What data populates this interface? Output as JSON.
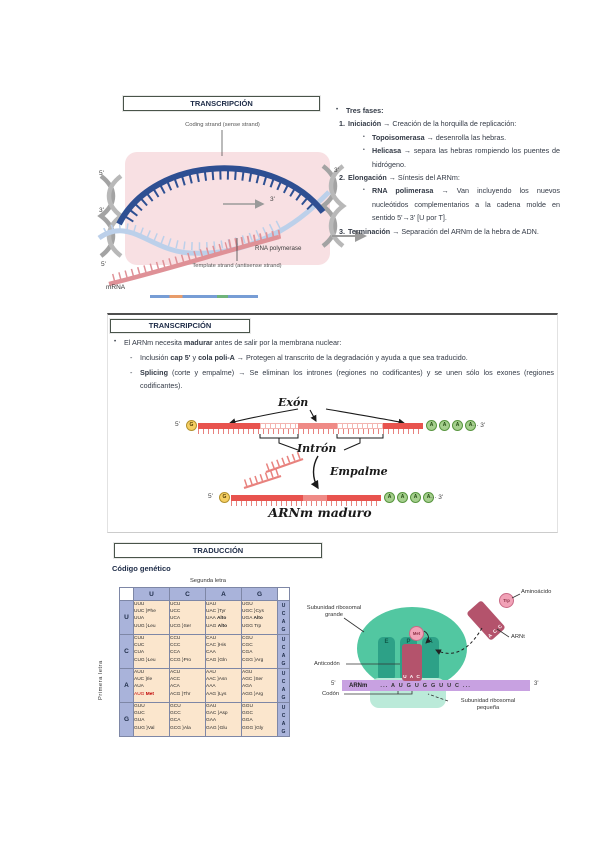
{
  "section1": {
    "title": "TRANSCRIPCIÓN",
    "diagram": {
      "coding_label": "Coding strand (sense strand)",
      "template_label": "Template strand (antisense strand)",
      "rna_polymerase": "RNA polymerase",
      "mrna": "mRNA",
      "p5": "5'",
      "p3": "3'"
    },
    "list": {
      "bullet": "•",
      "header": [
        {
          "t": "Tres fases:",
          "s": "b"
        }
      ],
      "items": [
        {
          "num": "1.",
          "head": [
            {
              "t": "Iniciación → ",
              "s": "b"
            },
            {
              "t": "Creación de la horquilla de replicación:"
            }
          ],
          "subs": [
            [
              {
                "t": "Topoisomerasa → ",
                "s": "b"
              },
              {
                "t": "desenrolla las hebras."
              }
            ],
            [
              {
                "t": "Helicasa → ",
                "s": "b"
              },
              {
                "t": "separa las hebras rompiendo los puentes de hidrógeno."
              }
            ]
          ]
        },
        {
          "num": "2.",
          "head": [
            {
              "t": "Elongación → ",
              "s": "b"
            },
            {
              "t": "Síntesis del ARNm:"
            }
          ],
          "subs": [
            [
              {
                "t": "RNA polimerasa → ",
                "s": "b"
              },
              {
                "t": "Van incluyendo los nuevos nucleótidos complementarios a la cadena molde en sentido 5'→3' [U por T]."
              }
            ]
          ]
        },
        {
          "num": "3.",
          "head": [
            {
              "t": "Terminación → ",
              "s": "b"
            },
            {
              "t": "Separación del ARNm de la hebra de ADN."
            }
          ],
          "subs": []
        }
      ]
    }
  },
  "section2": {
    "title": "TRANSCRIPCIÓN",
    "bullet": "•",
    "intro": [
      {
        "t": "El ARNm necesita "
      },
      {
        "t": "madurar",
        "s": "b"
      },
      {
        "t": " antes de salir por la membrana nuclear:"
      }
    ],
    "points": [
      {
        "marker": "-",
        "segs": [
          {
            "t": "Inclusión "
          },
          {
            "t": "cap 5'",
            "s": "b"
          },
          {
            "t": " y "
          },
          {
            "t": "cola poli-A",
            "s": "b"
          },
          {
            "t": " → Protegen al transcrito de la degradación y ayuda a que sea traducido."
          }
        ]
      },
      {
        "marker": "-",
        "segs": [
          {
            "t": "Splicing",
            "s": "b"
          },
          {
            "t": " (corte y empalme) → Se eliminan los intrones (regiones no codificantes) y se unen sólo los exones (regiones codificantes)."
          }
        ]
      }
    ],
    "diagram": {
      "exon": "Exón",
      "intron": "Intrón",
      "splice": "Empalme",
      "mature": "ARNm maduro",
      "p5": "5'",
      "p3": "3'",
      "dots3": "··· 3'",
      "cap": "G",
      "polyA": [
        "A",
        "A",
        "A",
        "A"
      ]
    }
  },
  "section3": {
    "title": "TRADUCCIÓN",
    "heading": "Código genético",
    "table": {
      "second_letter": "Segunda letra",
      "first_letter": "Primera letra",
      "third_letter": "Tercera letra",
      "cols": [
        "U",
        "C",
        "A",
        "G"
      ],
      "third": "U\nC\nA\nG",
      "rows": [
        {
          "letter": "U",
          "cells": [
            [
              {
                "t": "UUU\nUUC }Phe\nUUA\nUUG }Leu"
              }
            ],
            [
              {
                "t": "UCU\nUCC\nUCA\nUCG }Ser"
              }
            ],
            [
              {
                "t": "UAU\nUAC }Tyr\nUAA "
              },
              {
                "t": "Alto",
                "s": "b"
              },
              {
                "t": "\nUAG "
              },
              {
                "t": "Alto",
                "s": "b"
              }
            ],
            [
              {
                "t": "UGU\nUGC }Cys\nUGA "
              },
              {
                "t": "Alto",
                "s": "b"
              },
              {
                "t": "\nUGG Trp"
              }
            ]
          ]
        },
        {
          "letter": "C",
          "cells": [
            [
              {
                "t": "CUU\nCUC\nCUA\nCUG }Leu"
              }
            ],
            [
              {
                "t": "CCU\nCCC\nCCA\nCCG }Pro"
              }
            ],
            [
              {
                "t": "CAU\nCAC }His\nCAA\nCAG }Gln"
              }
            ],
            [
              {
                "t": "CGU\nCGC\nCGA\nCGG }Arg"
              }
            ]
          ]
        },
        {
          "letter": "A",
          "cells": [
            [
              {
                "t": "AUU\nAUC }Ile\nAUA\n"
              },
              {
                "t": "AUG ",
                "s": "r"
              },
              {
                "t": "Met",
                "s": "rb"
              }
            ],
            [
              {
                "t": "ACU\nACC\nACA\nACG }Thr"
              }
            ],
            [
              {
                "t": "AAU\nAAC }Asn\nAAA\nAAG }Lys"
              }
            ],
            [
              {
                "t": "AGU\nAGC }Ser\nAGA\nAGG }Arg"
              }
            ]
          ]
        },
        {
          "letter": "G",
          "cells": [
            [
              {
                "t": "GUU\nGUC\nGUA\nGUG }Val"
              }
            ],
            [
              {
                "t": "GCU\nGCC\nGCA\nGCG }Ala"
              }
            ],
            [
              {
                "t": "GAU\nGAC }Asp\nGAA\nGAG }Glu"
              }
            ],
            [
              {
                "t": "GGU\nGGC\nGGA\nGGG }Gly"
              }
            ]
          ]
        }
      ]
    },
    "ribosome": {
      "subunit_large": "Subunidad ribosomal\ngrande",
      "subunit_small": "Subunidad ribosomal\npequeña",
      "anticodon_label": "Anticodón",
      "codon_label": "Codón",
      "aminoacid_label": "Aminoácido",
      "trna_label": "ARNt",
      "mrna_label": "ARNm",
      "sites": [
        "E",
        "P",
        "A"
      ],
      "met": "Met",
      "trp": "Trp",
      "anticodon_p": "U A C",
      "anticodon_incoming": "A C C",
      "sequence": "... A U G U G G U U C ...",
      "p5": "5'",
      "p3": "3'"
    }
  }
}
